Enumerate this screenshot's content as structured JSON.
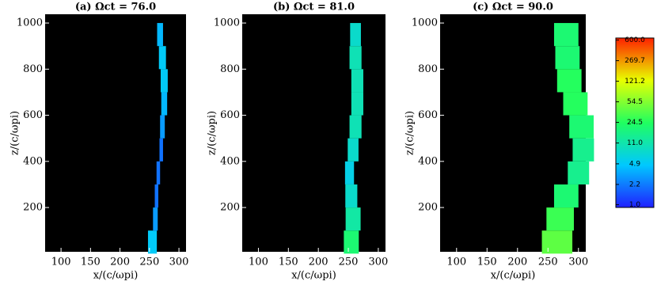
{
  "chart_data": [
    {
      "type": "band",
      "title": "(a) Ωct = 76.0",
      "xlabel": "x/(c/ωpi)",
      "ylabel": "z/(c/ωpi)",
      "xlim": [
        73,
        312
      ],
      "ylim": [
        8,
        1038
      ],
      "xticks": [
        100,
        150,
        200,
        250,
        300
      ],
      "yticks": [
        200,
        400,
        600,
        800,
        1000
      ],
      "z": [
        50,
        150,
        250,
        350,
        450,
        550,
        650,
        750,
        850,
        950
      ],
      "center": [
        255,
        260,
        262,
        265,
        270,
        272,
        275,
        275,
        272,
        268
      ],
      "width": [
        15,
        8,
        6,
        6,
        6,
        8,
        10,
        12,
        12,
        10
      ],
      "level": [
        5,
        3,
        2,
        2,
        2,
        3,
        4,
        5,
        5,
        4
      ]
    },
    {
      "type": "band",
      "title": "(b) Ωct = 81.0",
      "xlabel": "x/(c/ωpi)",
      "ylabel": "z/(c/ωpi)",
      "xlim": [
        73,
        312
      ],
      "ylim": [
        8,
        1038
      ],
      "xticks": [
        100,
        150,
        200,
        250,
        300
      ],
      "yticks": [
        200,
        400,
        600,
        800,
        1000
      ],
      "z": [
        50,
        150,
        250,
        350,
        450,
        550,
        650,
        750,
        850,
        950
      ],
      "center": [
        255,
        258,
        255,
        252,
        258,
        262,
        265,
        265,
        262,
        262
      ],
      "width": [
        25,
        25,
        20,
        15,
        18,
        20,
        20,
        20,
        20,
        18
      ],
      "level": [
        20,
        12,
        8,
        6,
        8,
        10,
        10,
        10,
        10,
        8
      ]
    },
    {
      "type": "band",
      "title": "(c) Ωct = 90.0",
      "xlabel": "x/(c/ωpi)",
      "ylabel": "z/(c/ωpi)",
      "xlim": [
        73,
        312
      ],
      "ylim": [
        8,
        1038
      ],
      "xticks": [
        100,
        150,
        200,
        250,
        300
      ],
      "yticks": [
        200,
        400,
        600,
        800,
        1000
      ],
      "z": [
        50,
        150,
        250,
        350,
        450,
        550,
        650,
        750,
        850,
        950
      ],
      "center": [
        265,
        270,
        280,
        300,
        308,
        305,
        295,
        285,
        282,
        280
      ],
      "width": [
        50,
        45,
        40,
        35,
        35,
        40,
        40,
        40,
        40,
        40
      ],
      "level": [
        40,
        30,
        20,
        15,
        15,
        20,
        25,
        25,
        20,
        20
      ]
    },
    {
      "type": "colorbar",
      "clim": [
        0.9,
        650
      ],
      "log": true,
      "ticks": [
        {
          "value": 1,
          "label": "1.0"
        },
        2.2,
        4.9,
        {
          "value": 11,
          "label": "11.0"
        },
        24.5,
        54.5,
        121.2,
        269.7,
        {
          "value": 600,
          "label": "600.0"
        }
      ]
    }
  ]
}
